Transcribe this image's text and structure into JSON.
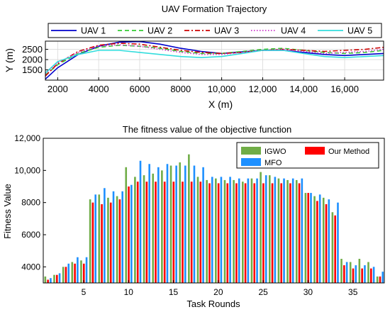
{
  "chart_data": [
    {
      "type": "line",
      "title": "UAV Formation Trajectory",
      "xlabel": "X (m)",
      "ylabel": "Y (m)",
      "xlim": [
        1400,
        17900
      ],
      "ylim": [
        1000,
        2900
      ],
      "xticks": [
        2000,
        4000,
        6000,
        8000,
        10000,
        12000,
        14000,
        16000
      ],
      "xtick_labels": [
        "2000",
        "4000",
        "6000",
        "8000",
        "10,000",
        "12,000",
        "14,000",
        "16,000"
      ],
      "yticks": [
        1500,
        2000,
        2500
      ],
      "ytick_labels": [
        "1500",
        "2000",
        "2500"
      ],
      "legend_position": "top",
      "grid": true,
      "series": [
        {
          "name": "UAV 1",
          "color": "#0000cc",
          "dash": "solid",
          "points": [
            [
              1400,
              1050
            ],
            [
              2000,
              1600
            ],
            [
              3000,
              2250
            ],
            [
              4000,
              2650
            ],
            [
              5000,
              2850
            ],
            [
              6000,
              2880
            ],
            [
              7000,
              2750
            ],
            [
              8000,
              2550
            ],
            [
              9000,
              2400
            ],
            [
              10000,
              2300
            ],
            [
              11000,
              2380
            ],
            [
              12000,
              2450
            ],
            [
              13000,
              2450
            ],
            [
              14000,
              2350
            ],
            [
              15000,
              2250
            ],
            [
              16000,
              2200
            ],
            [
              17000,
              2250
            ],
            [
              17900,
              2300
            ]
          ]
        },
        {
          "name": "UAV 2",
          "color": "#33cc33",
          "dash": "dashed",
          "points": [
            [
              1400,
              1250
            ],
            [
              2000,
              1750
            ],
            [
              3000,
              2300
            ],
            [
              4000,
              2600
            ],
            [
              5000,
              2700
            ],
            [
              6000,
              2650
            ],
            [
              7000,
              2550
            ],
            [
              8000,
              2400
            ],
            [
              9000,
              2300
            ],
            [
              10000,
              2300
            ],
            [
              11000,
              2400
            ],
            [
              12000,
              2500
            ],
            [
              13000,
              2550
            ],
            [
              14000,
              2450
            ],
            [
              15000,
              2350
            ],
            [
              16000,
              2300
            ],
            [
              17000,
              2350
            ],
            [
              17900,
              2450
            ]
          ]
        },
        {
          "name": "UAV 3",
          "color": "#cc0000",
          "dash": "dashdot",
          "points": [
            [
              1400,
              1200
            ],
            [
              2000,
              1800
            ],
            [
              3000,
              2400
            ],
            [
              4000,
              2700
            ],
            [
              5000,
              2800
            ],
            [
              6000,
              2750
            ],
            [
              7000,
              2600
            ],
            [
              8000,
              2450
            ],
            [
              9000,
              2350
            ],
            [
              10000,
              2300
            ],
            [
              11000,
              2350
            ],
            [
              12000,
              2450
            ],
            [
              13000,
              2500
            ],
            [
              14000,
              2450
            ],
            [
              15000,
              2400
            ],
            [
              16000,
              2450
            ],
            [
              17000,
              2500
            ],
            [
              17900,
              2600
            ]
          ]
        },
        {
          "name": "UAV 4",
          "color": "#cc33cc",
          "dash": "dotted",
          "points": [
            [
              1400,
              1300
            ],
            [
              2000,
              1850
            ],
            [
              3000,
              2350
            ],
            [
              4000,
              2650
            ],
            [
              5000,
              2720
            ],
            [
              6000,
              2650
            ],
            [
              7000,
              2500
            ],
            [
              8000,
              2350
            ],
            [
              9000,
              2250
            ],
            [
              10000,
              2250
            ],
            [
              11000,
              2350
            ],
            [
              12000,
              2450
            ],
            [
              13000,
              2500
            ],
            [
              14000,
              2400
            ],
            [
              15000,
              2300
            ],
            [
              16000,
              2350
            ],
            [
              17000,
              2400
            ],
            [
              17900,
              2500
            ]
          ]
        },
        {
          "name": "UAV 5",
          "color": "#33dddd",
          "dash": "solid",
          "points": [
            [
              1400,
              1350
            ],
            [
              2000,
              1900
            ],
            [
              3000,
              2250
            ],
            [
              4000,
              2450
            ],
            [
              5000,
              2450
            ],
            [
              6000,
              2350
            ],
            [
              7000,
              2250
            ],
            [
              8000,
              2150
            ],
            [
              9000,
              2100
            ],
            [
              10000,
              2150
            ],
            [
              11000,
              2300
            ],
            [
              12000,
              2450
            ],
            [
              13000,
              2450
            ],
            [
              14000,
              2300
            ],
            [
              15000,
              2150
            ],
            [
              16000,
              2100
            ],
            [
              17000,
              2150
            ],
            [
              17900,
              2200
            ]
          ]
        }
      ]
    },
    {
      "type": "bar",
      "title": "The fitness value of the objective function",
      "xlabel": "Task Rounds",
      "ylabel": "Fitness Value",
      "xlim": [
        0.5,
        38.5
      ],
      "ylim": [
        3000,
        12000
      ],
      "xticks": [
        5,
        10,
        15,
        20,
        25,
        30,
        35
      ],
      "xtick_labels": [
        "5",
        "10",
        "15",
        "20",
        "25",
        "30",
        "35"
      ],
      "yticks": [
        4000,
        6000,
        8000,
        10000,
        12000
      ],
      "ytick_labels": [
        "4000",
        "6000",
        "8000",
        "10,000",
        "12,000"
      ],
      "legend_position": "top-right",
      "grid": false,
      "categories": [
        1,
        2,
        3,
        4,
        5,
        6,
        7,
        8,
        9,
        10,
        11,
        12,
        13,
        14,
        15,
        16,
        17,
        18,
        19,
        20,
        21,
        22,
        23,
        24,
        25,
        26,
        27,
        28,
        29,
        30,
        31,
        32,
        33,
        34,
        35,
        36,
        37,
        38
      ],
      "series": [
        {
          "name": "IGWO",
          "color": "#70ad47",
          "values": [
            3400,
            3500,
            4000,
            4300,
            4400,
            8200,
            8500,
            8300,
            8400,
            10200,
            9600,
            9700,
            9800,
            10000,
            10300,
            10500,
            11000,
            9600,
            9400,
            9500,
            9400,
            9400,
            9300,
            9500,
            9900,
            9700,
            9500,
            9400,
            9400,
            8600,
            8400,
            8300,
            7400,
            4500,
            4300,
            4500,
            4300,
            3400
          ]
        },
        {
          "name": "Our Method",
          "color": "#ff0000",
          "values": [
            3200,
            3500,
            4000,
            4200,
            4200,
            8000,
            7900,
            8000,
            8200,
            9000,
            9300,
            9300,
            9300,
            9300,
            9300,
            9300,
            9300,
            9300,
            9200,
            9200,
            9200,
            9200,
            9200,
            9200,
            9200,
            9200,
            9200,
            9200,
            9200,
            8600,
            8100,
            7900,
            7200,
            4100,
            3900,
            3900,
            3900,
            3400
          ]
        },
        {
          "name": "MFO",
          "color": "#1e90ff",
          "values": [
            3300,
            3600,
            4200,
            4600,
            4600,
            8500,
            8900,
            8700,
            8700,
            9100,
            10600,
            10400,
            10200,
            10400,
            10300,
            10300,
            10300,
            10200,
            9600,
            9600,
            9600,
            9500,
            9500,
            9500,
            9700,
            9600,
            9500,
            9500,
            9500,
            8600,
            8500,
            8200,
            8000,
            4300,
            4100,
            4100,
            4000,
            3700
          ]
        }
      ]
    }
  ]
}
